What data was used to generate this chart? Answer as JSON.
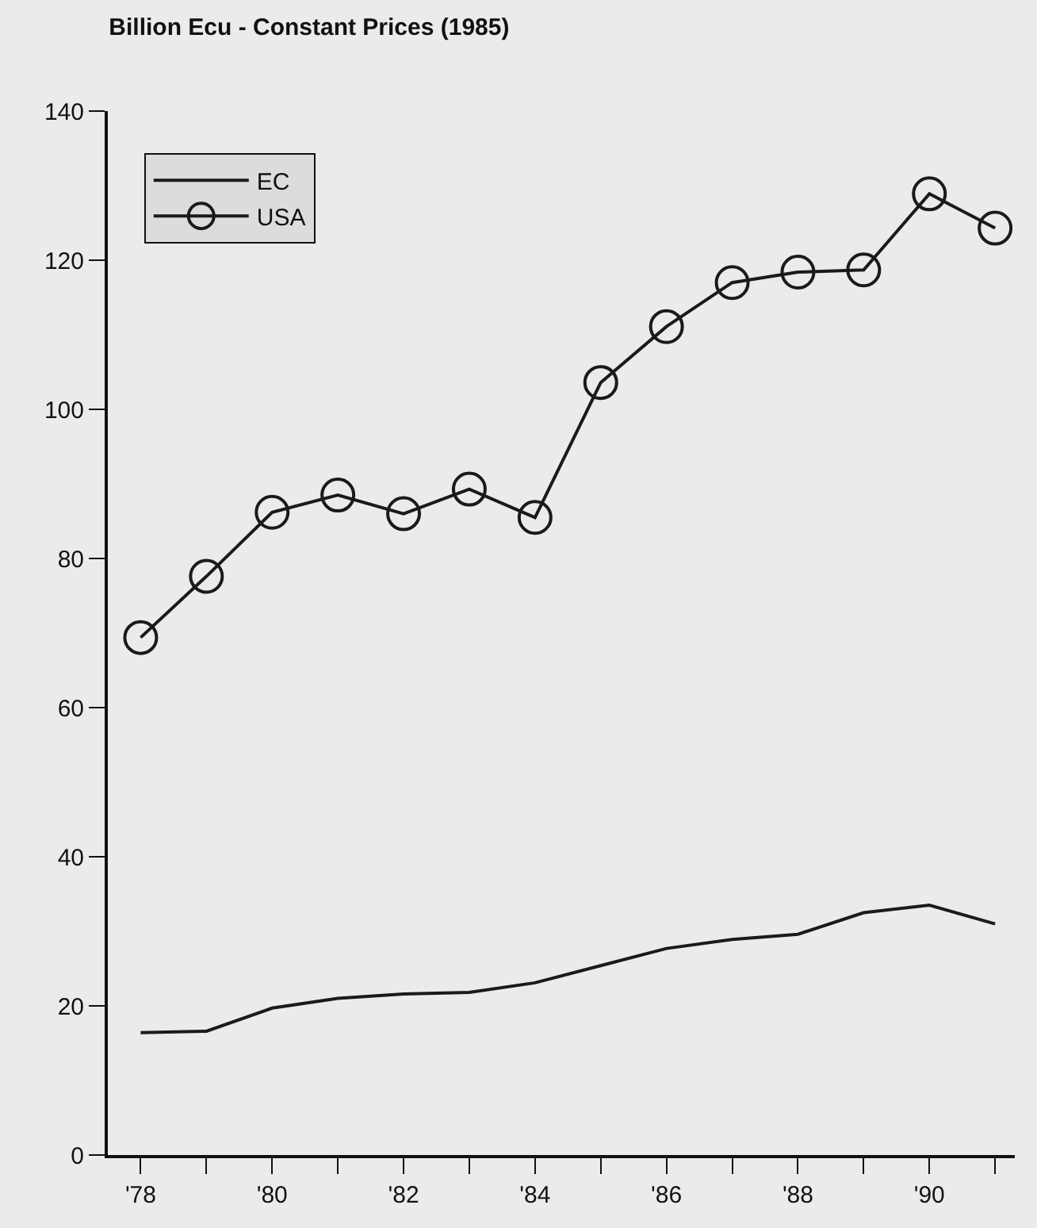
{
  "chart_data": {
    "type": "line",
    "title": "Billion Ecu - Constant Prices (1985)",
    "x": [
      1978,
      1979,
      1980,
      1981,
      1982,
      1983,
      1984,
      1985,
      1986,
      1987,
      1988,
      1989,
      1990,
      1991
    ],
    "series": [
      {
        "name": "EC",
        "color": "#1a1a1a",
        "marker": "none",
        "values": [
          16.4,
          16.6,
          19.7,
          21.0,
          21.6,
          21.8,
          23.1,
          25.4,
          27.7,
          28.9,
          29.6,
          32.5,
          33.5,
          31.0
        ]
      },
      {
        "name": "USA",
        "color": "#1a1a1a",
        "marker": "circle",
        "values": [
          69.4,
          77.6,
          86.2,
          88.5,
          86.0,
          89.3,
          85.5,
          103.6,
          111.1,
          117.0,
          118.4,
          118.7,
          128.9,
          124.3
        ]
      }
    ],
    "xlim": [
      1977.5,
      1991.3
    ],
    "xticks": [
      {
        "value": 1978,
        "label": "'78"
      },
      {
        "value": 1979,
        "label": null
      },
      {
        "value": 1980,
        "label": "'80"
      },
      {
        "value": 1981,
        "label": null
      },
      {
        "value": 1982,
        "label": "'82"
      },
      {
        "value": 1983,
        "label": null
      },
      {
        "value": 1984,
        "label": "'84"
      },
      {
        "value": 1985,
        "label": null
      },
      {
        "value": 1986,
        "label": "'86"
      },
      {
        "value": 1987,
        "label": null
      },
      {
        "value": 1988,
        "label": "'88"
      },
      {
        "value": 1989,
        "label": null
      },
      {
        "value": 1990,
        "label": "'90"
      },
      {
        "value": 1991,
        "label": null
      }
    ],
    "ylim": [
      0,
      140
    ],
    "yticks": [
      0,
      20,
      40,
      60,
      80,
      100,
      120,
      140
    ],
    "grid": false,
    "legend": "top left",
    "line_style": "solid"
  }
}
